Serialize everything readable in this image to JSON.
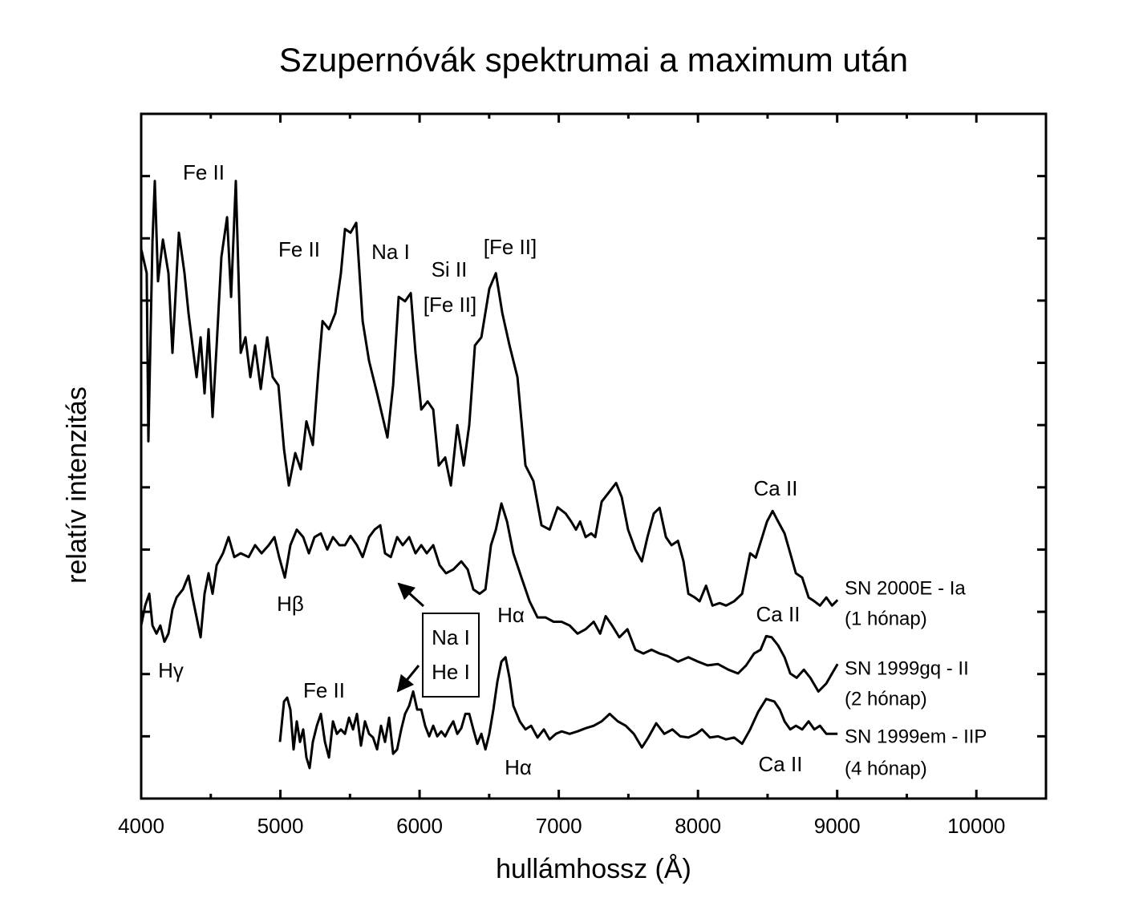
{
  "chart_data": {
    "type": "line",
    "title": "Szupernóvák spektrumai a maximum után",
    "xlabel": "hullámhossz (Å)",
    "ylabel": "relatív intenzitás",
    "xlim": [
      4000,
      10500
    ],
    "xticks": [
      4000,
      5000,
      6000,
      7000,
      8000,
      9000,
      10000
    ],
    "xminor_ticks": [
      4500,
      5500,
      6500,
      7500,
      8500,
      9500,
      10500
    ],
    "ylim": [
      0,
      11
    ],
    "yticks": [
      1,
      2,
      3,
      4,
      5,
      6,
      7,
      8,
      9,
      10
    ],
    "grid": false,
    "series": [
      {
        "name": "SN 2000E - Ia",
        "period": "(1 hónap)",
        "color": "#000000",
        "x": [
          4000,
          4040,
          4052,
          4081,
          4098,
          4121,
          4156,
          4196,
          4225,
          4271,
          4311,
          4340,
          4369,
          4398,
          4427,
          4455,
          4484,
          4513,
          4542,
          4576,
          4617,
          4646,
          4680,
          4715,
          4749,
          4784,
          4818,
          4859,
          4905,
          4945,
          4986,
          5026,
          5061,
          5107,
          5147,
          5187,
          5233,
          5274,
          5303,
          5349,
          5395,
          5435,
          5464,
          5504,
          5545,
          5591,
          5637,
          5695,
          5769,
          5810,
          5850,
          5896,
          5937,
          5971,
          6012,
          6058,
          6098,
          6138,
          6184,
          6225,
          6271,
          6317,
          6357,
          6398,
          6444,
          6501,
          6548,
          6594,
          6646,
          6703,
          6761,
          6818,
          6876,
          6934,
          6991,
          7049,
          7089,
          7124,
          7153,
          7193,
          7233,
          7262,
          7308,
          7354,
          7412,
          7452,
          7498,
          7550,
          7597,
          7637,
          7683,
          7724,
          7770,
          7810,
          7856,
          7896,
          7931,
          7977,
          8012,
          8058,
          8104,
          8156,
          8202,
          8260,
          8317,
          8375,
          8415,
          8461,
          8496,
          8536,
          8576,
          8622,
          8663,
          8703,
          8749,
          8795,
          8836,
          8876,
          8922,
          8963,
          9003
        ],
        "values": [
          8.83,
          8.44,
          5.74,
          8.96,
          9.92,
          8.31,
          8.98,
          8.44,
          7.16,
          9.09,
          8.44,
          7.8,
          7.28,
          6.77,
          7.41,
          6.51,
          7.54,
          6.13,
          7.28,
          8.7,
          9.34,
          8.06,
          9.92,
          7.16,
          7.41,
          6.77,
          7.28,
          6.58,
          7.41,
          6.77,
          6.64,
          5.61,
          5.03,
          5.55,
          5.29,
          6.06,
          5.68,
          6.9,
          7.67,
          7.54,
          7.8,
          8.44,
          9.15,
          9.09,
          9.25,
          7.67,
          7.03,
          6.51,
          5.8,
          6.64,
          8.06,
          7.99,
          8.12,
          7.16,
          6.25,
          6.38,
          6.25,
          5.35,
          5.48,
          5.03,
          6.0,
          5.35,
          6.0,
          7.28,
          7.41,
          8.19,
          8.44,
          7.8,
          7.28,
          6.77,
          5.35,
          5.1,
          4.39,
          4.32,
          4.68,
          4.58,
          4.45,
          4.32,
          4.45,
          4.2,
          4.26,
          4.2,
          4.77,
          4.9,
          5.07,
          4.84,
          4.32,
          4.0,
          3.81,
          4.2,
          4.58,
          4.67,
          4.2,
          4.07,
          4.14,
          3.81,
          3.29,
          3.23,
          3.17,
          3.42,
          3.1,
          3.14,
          3.1,
          3.17,
          3.29,
          3.94,
          3.87,
          4.2,
          4.45,
          4.62,
          4.45,
          4.26,
          3.94,
          3.62,
          3.55,
          3.23,
          3.17,
          3.1,
          3.23,
          3.1,
          3.19
        ]
      },
      {
        "name": "SN 1999gq - II",
        "period": "(2 hónap)",
        "color": "#000000",
        "x": [
          4000,
          4029,
          4058,
          4081,
          4110,
          4138,
          4167,
          4196,
          4225,
          4254,
          4300,
          4340,
          4369,
          4398,
          4427,
          4455,
          4484,
          4513,
          4542,
          4588,
          4628,
          4669,
          4715,
          4772,
          4818,
          4865,
          4916,
          4957,
          4991,
          5032,
          5072,
          5118,
          5164,
          5205,
          5245,
          5291,
          5337,
          5378,
          5424,
          5464,
          5504,
          5550,
          5591,
          5637,
          5677,
          5718,
          5752,
          5793,
          5839,
          5879,
          5925,
          5971,
          6012,
          6052,
          6098,
          6144,
          6190,
          6242,
          6300,
          6346,
          6386,
          6432,
          6473,
          6513,
          6548,
          6588,
          6628,
          6674,
          6732,
          6790,
          6847,
          6905,
          6963,
          7020,
          7078,
          7135,
          7193,
          7251,
          7297,
          7337,
          7383,
          7435,
          7493,
          7550,
          7608,
          7666,
          7724,
          7781,
          7856,
          7931,
          8000,
          8069,
          8144,
          8219,
          8288,
          8346,
          8403,
          8450,
          8490,
          8530,
          8576,
          8622,
          8663,
          8709,
          8761,
          8807,
          8865,
          8922,
          8963,
          9003
        ],
        "values": [
          2.78,
          3.1,
          3.29,
          2.78,
          2.65,
          2.78,
          2.52,
          2.65,
          3.04,
          3.23,
          3.36,
          3.58,
          3.23,
          2.91,
          2.59,
          3.29,
          3.62,
          3.29,
          3.75,
          3.94,
          4.2,
          3.88,
          3.94,
          3.88,
          4.07,
          3.94,
          4.07,
          4.2,
          3.88,
          3.55,
          4.07,
          4.32,
          4.2,
          3.94,
          4.2,
          4.26,
          4.0,
          4.2,
          4.07,
          4.07,
          4.22,
          4.07,
          3.88,
          4.2,
          4.32,
          4.39,
          3.94,
          3.88,
          4.2,
          4.07,
          4.2,
          3.94,
          4.07,
          3.94,
          4.07,
          3.75,
          3.62,
          3.68,
          3.81,
          3.68,
          3.36,
          3.29,
          3.36,
          4.07,
          4.32,
          4.74,
          4.45,
          3.94,
          3.55,
          3.17,
          2.91,
          2.91,
          2.84,
          2.84,
          2.78,
          2.65,
          2.72,
          2.84,
          2.65,
          2.93,
          2.78,
          2.59,
          2.72,
          2.39,
          2.33,
          2.39,
          2.33,
          2.29,
          2.2,
          2.27,
          2.2,
          2.14,
          2.16,
          2.07,
          2.01,
          2.14,
          2.33,
          2.39,
          2.61,
          2.59,
          2.46,
          2.27,
          2.01,
          1.94,
          2.07,
          1.94,
          1.72,
          1.85,
          2.01,
          2.16
        ]
      },
      {
        "name": "SN 1999em - IIP",
        "period": "(4 hónap)",
        "color": "#000000",
        "x": [
          4997,
          5026,
          5049,
          5072,
          5095,
          5118,
          5141,
          5164,
          5187,
          5210,
          5233,
          5262,
          5291,
          5320,
          5349,
          5378,
          5406,
          5435,
          5464,
          5493,
          5522,
          5550,
          5579,
          5608,
          5637,
          5666,
          5695,
          5723,
          5752,
          5781,
          5810,
          5839,
          5868,
          5896,
          5925,
          5954,
          5983,
          6012,
          6040,
          6069,
          6098,
          6127,
          6156,
          6184,
          6213,
          6242,
          6271,
          6300,
          6329,
          6357,
          6386,
          6415,
          6444,
          6473,
          6501,
          6530,
          6559,
          6588,
          6617,
          6646,
          6674,
          6720,
          6761,
          6801,
          6847,
          6893,
          6934,
          6980,
          7020,
          7078,
          7135,
          7193,
          7251,
          7308,
          7366,
          7424,
          7481,
          7539,
          7597,
          7643,
          7700,
          7758,
          7816,
          7873,
          7931,
          7988,
          8029,
          8086,
          8144,
          8202,
          8260,
          8317,
          8375,
          8432,
          8490,
          8548,
          8588,
          8622,
          8663,
          8703,
          8749,
          8795,
          8836,
          8876,
          8922,
          9003
        ],
        "values": [
          0.91,
          1.56,
          1.62,
          1.43,
          0.79,
          1.24,
          0.91,
          1.11,
          0.66,
          0.49,
          0.91,
          1.17,
          1.36,
          0.91,
          0.66,
          1.24,
          1.04,
          1.11,
          1.04,
          1.3,
          1.11,
          1.36,
          0.85,
          1.24,
          1.04,
          0.98,
          0.79,
          1.17,
          0.91,
          1.3,
          0.72,
          0.79,
          1.11,
          1.36,
          1.49,
          1.72,
          1.43,
          1.43,
          1.17,
          1.0,
          1.17,
          1.0,
          1.08,
          1.0,
          1.13,
          1.24,
          1.04,
          1.13,
          1.36,
          1.36,
          1.11,
          0.88,
          1.04,
          0.79,
          1.04,
          1.43,
          1.88,
          2.2,
          2.27,
          1.94,
          1.49,
          1.24,
          1.11,
          1.17,
          0.98,
          1.11,
          0.95,
          1.04,
          1.08,
          1.04,
          1.08,
          1.13,
          1.17,
          1.24,
          1.36,
          1.24,
          1.17,
          1.04,
          0.82,
          0.98,
          1.21,
          1.04,
          1.11,
          1.0,
          0.98,
          1.04,
          1.11,
          0.98,
          1.0,
          0.95,
          0.98,
          0.88,
          1.11,
          1.39,
          1.6,
          1.56,
          1.43,
          1.24,
          1.11,
          1.17,
          1.11,
          1.24,
          1.11,
          1.17,
          1.04,
          1.04
        ]
      }
    ],
    "annotations": [
      "Fe II",
      "Fe II",
      "Na I",
      "Si II",
      "[Fe II]",
      "[Fe II]",
      "Ca II",
      "Hβ",
      "Hα",
      "Ca II",
      "Hγ",
      "Fe II",
      "Hα",
      "Ca II",
      "Na I",
      "He I"
    ]
  }
}
